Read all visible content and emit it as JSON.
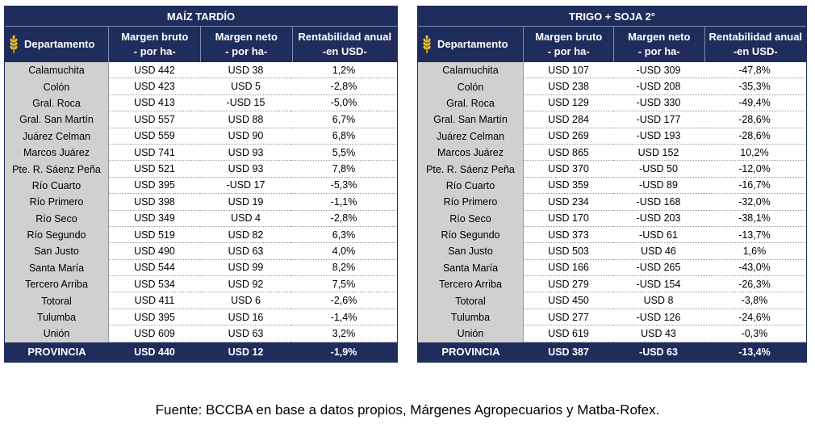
{
  "tables": [
    {
      "title": "MAÍZ TARDÍO",
      "headers": [
        "Departamento",
        "Margen bruto - por ha-",
        "Margen neto - por ha-",
        "Rentabilidad anual -en USD-"
      ],
      "rows": [
        [
          "Calamuchita",
          "USD 442",
          "USD 38",
          "1,2%"
        ],
        [
          "Colón",
          "USD 423",
          "USD 5",
          "-2,8%"
        ],
        [
          "Gral. Roca",
          "USD 413",
          "-USD 15",
          "-5,0%"
        ],
        [
          "Gral. San Martín",
          "USD 557",
          "USD 88",
          "6,7%"
        ],
        [
          "Juárez Celman",
          "USD 559",
          "USD 90",
          "6,8%"
        ],
        [
          "Marcos Juárez",
          "USD 741",
          "USD 93",
          "5,5%"
        ],
        [
          "Pte. R. Sáenz Peña",
          "USD 521",
          "USD 93",
          "7,8%"
        ],
        [
          "Río Cuarto",
          "USD 395",
          "-USD 17",
          "-5,3%"
        ],
        [
          "Río Primero",
          "USD 398",
          "USD 19",
          "-1,1%"
        ],
        [
          "Río Seco",
          "USD 349",
          "USD 4",
          "-2,8%"
        ],
        [
          "Río Segundo",
          "USD 519",
          "USD 82",
          "6,3%"
        ],
        [
          "San Justo",
          "USD 490",
          "USD 63",
          "4,0%"
        ],
        [
          "Santa María",
          "USD 544",
          "USD 99",
          "8,2%"
        ],
        [
          "Tercero Arriba",
          "USD 534",
          "USD 92",
          "7,5%"
        ],
        [
          "Totoral",
          "USD 411",
          "USD 6",
          "-2,6%"
        ],
        [
          "Tulumba",
          "USD 395",
          "USD 16",
          "-1,4%"
        ],
        [
          "Unión",
          "USD 609",
          "USD 63",
          "3,2%"
        ]
      ],
      "total": [
        "PROVINCIA",
        "USD 440",
        "USD 12",
        "-1,9%"
      ]
    },
    {
      "title": "TRIGO + SOJA 2°",
      "headers": [
        "Departamento",
        "Margen bruto - por ha-",
        "Margen neto - por ha-",
        "Rentabilidad anual -en USD-"
      ],
      "rows": [
        [
          "Calamuchita",
          "USD 107",
          "-USD 309",
          "-47,8%"
        ],
        [
          "Colón",
          "USD 238",
          "-USD 208",
          "-35,3%"
        ],
        [
          "Gral. Roca",
          "USD 129",
          "-USD 330",
          "-49,4%"
        ],
        [
          "Gral. San Martín",
          "USD 284",
          "-USD 177",
          "-28,6%"
        ],
        [
          "Juárez Celman",
          "USD 269",
          "-USD 193",
          "-28,6%"
        ],
        [
          "Marcos Juárez",
          "USD 865",
          "USD 152",
          "10,2%"
        ],
        [
          "Pte. R. Sáenz Peña",
          "USD 370",
          "-USD 50",
          "-12,0%"
        ],
        [
          "Río Cuarto",
          "USD 359",
          "-USD 89",
          "-16,7%"
        ],
        [
          "Río Primero",
          "USD 234",
          "-USD 168",
          "-32,0%"
        ],
        [
          "Río Seco",
          "USD 170",
          "-USD 203",
          "-38,1%"
        ],
        [
          "Río Segundo",
          "USD 373",
          "-USD 61",
          "-13,7%"
        ],
        [
          "San Justo",
          "USD 503",
          "USD 46",
          "1,6%"
        ],
        [
          "Santa María",
          "USD 166",
          "-USD 265",
          "-43,0%"
        ],
        [
          "Tercero Arriba",
          "USD 279",
          "-USD 154",
          "-26,3%"
        ],
        [
          "Totoral",
          "USD 450",
          "USD 8",
          "-3,8%"
        ],
        [
          "Tulumba",
          "USD 277",
          "-USD 126",
          "-24,6%"
        ],
        [
          "Unión",
          "USD 619",
          "USD 43",
          "-0,3%"
        ]
      ],
      "total": [
        "PROVINCIA",
        "USD 387",
        "-USD 63",
        "-13,4%"
      ]
    }
  ],
  "source": "Fuente: BCCBA en base a datos propios, Márgenes Agropecuarios y Matba-Rofex."
}
